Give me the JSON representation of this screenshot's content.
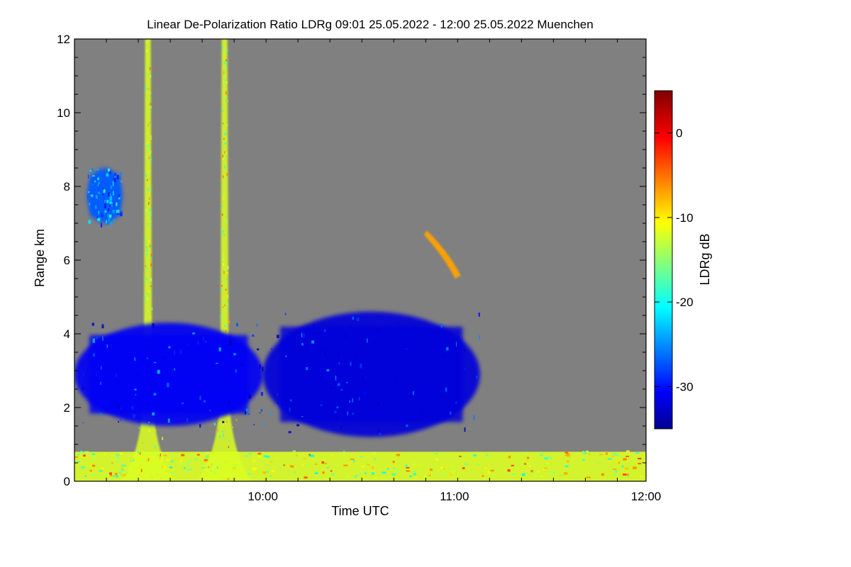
{
  "chart_data": {
    "type": "heatmap",
    "title": "Linear De-Polarization Ratio LDRg   09:01 25.05.2022 - 12:00 25.05.2022 Muenchen",
    "xlabel": "Time UTC",
    "ylabel": "Range km",
    "xlim": [
      "09:01",
      "12:00"
    ],
    "ylim": [
      0,
      12
    ],
    "x_ticks": [
      "10:00",
      "11:00",
      "12:00"
    ],
    "y_ticks": [
      "0",
      "2",
      "4",
      "6",
      "8",
      "10",
      "12"
    ],
    "colorbar": {
      "label": "LDRg dB",
      "range": [
        -35,
        5
      ],
      "ticks": [
        "0",
        "-10",
        "-20",
        "-30"
      ],
      "colormap": "jet",
      "background_color": "#808080"
    },
    "features": [
      {
        "description": "low-level aerosol/noise layer",
        "time_start": "09:01",
        "time_end": "12:00",
        "range_km": [
          0,
          0.8
        ],
        "ldr_db": -12
      },
      {
        "description": "vertical fall streak",
        "time_center": "09:24",
        "range_km": [
          0,
          12
        ],
        "ldr_db": -12
      },
      {
        "description": "vertical fall streak",
        "time_center": "09:48",
        "range_km": [
          0,
          12
        ],
        "ldr_db": -12
      },
      {
        "description": "cloud region",
        "time_start": "09:01",
        "time_end": "10:00",
        "range_km": [
          1.5,
          4.3
        ],
        "ldr_db": -31
      },
      {
        "description": "cloud region",
        "time_start": "10:00",
        "time_end": "11:08",
        "range_km": [
          1.2,
          4.6
        ],
        "ldr_db": -32
      },
      {
        "description": "upper cloud patch",
        "time_start": "09:05",
        "time_end": "09:16",
        "range_km": [
          7.0,
          8.5
        ],
        "ldr_db": -27
      },
      {
        "description": "isolated cloud patch",
        "time_center": "10:58",
        "range_km": [
          5.5,
          6.8
        ],
        "ldr_db": -7
      }
    ]
  }
}
